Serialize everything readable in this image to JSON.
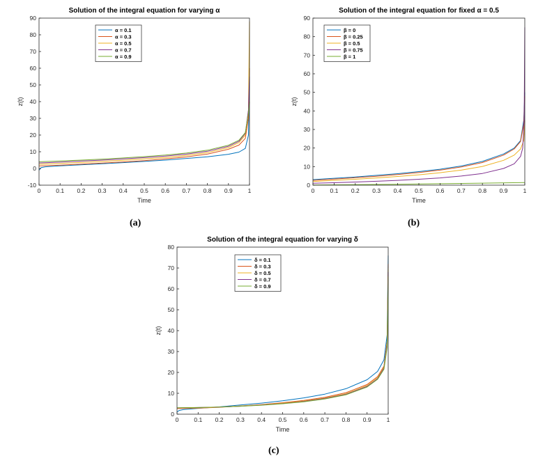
{
  "panel_labels": [
    "(a)",
    "(b)",
    "(c)"
  ],
  "chart_data": [
    {
      "type": "line",
      "title": "Solution of the integral equation for varying α",
      "xlabel": "Time",
      "ylabel": "z(t)",
      "xlim": [
        0,
        1
      ],
      "ylim": [
        -10,
        90
      ],
      "xticks": [
        "0",
        "0.1",
        "0.2",
        "0.3",
        "0.4",
        "0.5",
        "0.6",
        "0.7",
        "0.8",
        "0.9",
        "1"
      ],
      "yticks": [
        "-10",
        "0",
        "10",
        "20",
        "30",
        "40",
        "50",
        "60",
        "70",
        "80",
        "90"
      ],
      "legend_position": "top-left",
      "legend_symbol": "α",
      "legend_labels": [
        "α = 0.1",
        "α = 0.3",
        "α = 0.5",
        "α = 0.7",
        "α = 0.9"
      ],
      "series": [
        {
          "name": "α = 0.1",
          "color": "#0072BD",
          "x": [
            0.0,
            0.01,
            0.03,
            0.1,
            0.2,
            0.3,
            0.4,
            0.5,
            0.6,
            0.7,
            0.8,
            0.9,
            0.95,
            0.98,
            0.995,
            1.0
          ],
          "y": [
            -1,
            0.5,
            1,
            1.6,
            2.2,
            2.8,
            3.5,
            4.2,
            5.0,
            6.0,
            7.0,
            8.5,
            9.8,
            12,
            20,
            55
          ]
        },
        {
          "name": "α = 0.3",
          "color": "#D95319",
          "x": [
            0.0,
            0.1,
            0.2,
            0.3,
            0.4,
            0.5,
            0.6,
            0.7,
            0.8,
            0.9,
            0.95,
            0.98,
            0.995,
            1.0
          ],
          "y": [
            1.5,
            2.0,
            2.6,
            3.2,
            3.9,
            4.7,
            5.7,
            6.9,
            8.6,
            11.5,
            14,
            18,
            30,
            60
          ]
        },
        {
          "name": "α = 0.5",
          "color": "#EDB120",
          "x": [
            0.0,
            0.1,
            0.2,
            0.3,
            0.4,
            0.5,
            0.6,
            0.7,
            0.8,
            0.9,
            0.95,
            0.98,
            0.995,
            1.0
          ],
          "y": [
            2.5,
            3.0,
            3.6,
            4.2,
            4.9,
            5.7,
            6.6,
            7.8,
            9.5,
            12.5,
            15.5,
            20,
            35,
            88
          ]
        },
        {
          "name": "α = 0.7",
          "color": "#7E2F8E",
          "x": [
            0.0,
            0.1,
            0.2,
            0.3,
            0.4,
            0.5,
            0.6,
            0.7,
            0.8,
            0.9,
            0.95,
            0.98,
            0.995,
            1.0
          ],
          "y": [
            3.3,
            3.8,
            4.4,
            5.0,
            5.7,
            6.5,
            7.4,
            8.6,
            10.3,
            13.3,
            16.3,
            21,
            35,
            55
          ]
        },
        {
          "name": "α = 0.9",
          "color": "#77AC30",
          "x": [
            0.0,
            0.1,
            0.2,
            0.3,
            0.4,
            0.5,
            0.6,
            0.7,
            0.8,
            0.9,
            0.95,
            0.98,
            0.995,
            1.0
          ],
          "y": [
            4.0,
            4.5,
            5.0,
            5.6,
            6.3,
            7.1,
            8.0,
            9.2,
            10.9,
            13.9,
            16.9,
            21.5,
            33,
            40
          ]
        }
      ]
    },
    {
      "type": "line",
      "title": "Solution of the integral equation for fixed α = 0.5",
      "xlabel": "Time",
      "ylabel": "z(t)",
      "xlim": [
        0,
        1
      ],
      "ylim": [
        0,
        90
      ],
      "xticks": [
        "0",
        "0.1",
        "0.2",
        "0.3",
        "0.4",
        "0.5",
        "0.6",
        "0.7",
        "0.8",
        "0.9",
        "1"
      ],
      "yticks": [
        "0",
        "10",
        "20",
        "30",
        "40",
        "50",
        "60",
        "70",
        "80",
        "90"
      ],
      "legend_position": "top-left",
      "legend_symbol": "β",
      "legend_labels": [
        "β = 0",
        "β = 0.25",
        "β = 0.5",
        "β = 0.75",
        "β = 1"
      ],
      "series": [
        {
          "name": "β = 0",
          "color": "#0072BD",
          "x": [
            0.0,
            0.1,
            0.2,
            0.3,
            0.4,
            0.5,
            0.6,
            0.7,
            0.8,
            0.9,
            0.95,
            0.98,
            0.995,
            1.0
          ],
          "y": [
            3.0,
            3.7,
            4.4,
            5.3,
            6.2,
            7.3,
            8.6,
            10.3,
            12.8,
            16.8,
            20,
            24,
            35,
            50
          ]
        },
        {
          "name": "β = 0.25",
          "color": "#D95319",
          "x": [
            0.0,
            0.1,
            0.2,
            0.3,
            0.4,
            0.5,
            0.6,
            0.7,
            0.8,
            0.9,
            0.95,
            0.98,
            0.995,
            1.0
          ],
          "y": [
            2.6,
            3.3,
            4.0,
            4.8,
            5.7,
            6.8,
            8.1,
            9.8,
            12.2,
            16.2,
            19.5,
            23.5,
            33,
            48
          ]
        },
        {
          "name": "β = 0.5",
          "color": "#EDB120",
          "x": [
            0.0,
            0.1,
            0.2,
            0.3,
            0.4,
            0.5,
            0.6,
            0.7,
            0.8,
            0.9,
            0.95,
            0.98,
            0.995,
            1.0
          ],
          "y": [
            2.0,
            2.6,
            3.2,
            3.9,
            4.7,
            5.6,
            6.7,
            8.1,
            10.1,
            13.4,
            16.2,
            19.5,
            24,
            35
          ]
        },
        {
          "name": "β = 0.75",
          "color": "#7E2F8E",
          "x": [
            0.0,
            0.1,
            0.2,
            0.3,
            0.4,
            0.5,
            0.6,
            0.7,
            0.8,
            0.9,
            0.95,
            0.98,
            0.99,
            0.997,
            1.0
          ],
          "y": [
            1.0,
            1.3,
            1.7,
            2.1,
            2.6,
            3.2,
            3.9,
            4.9,
            6.3,
            9.0,
            11.5,
            15.5,
            20,
            35,
            85
          ]
        },
        {
          "name": "β = 1",
          "color": "#77AC30",
          "x": [
            0.0,
            0.2,
            0.4,
            0.6,
            0.8,
            1.0
          ],
          "y": [
            0.1,
            0.3,
            0.5,
            0.8,
            1.1,
            1.4
          ]
        }
      ]
    },
    {
      "type": "line",
      "title": "Solution of the integral equation for varying δ",
      "xlabel": "Time",
      "ylabel": "z(t)",
      "xlim": [
        0,
        1
      ],
      "ylim": [
        0,
        80
      ],
      "xticks": [
        "0",
        "0.1",
        "0.2",
        "0.3",
        "0.4",
        "0.5",
        "0.6",
        "0.7",
        "0.8",
        "0.9",
        "1"
      ],
      "yticks": [
        "0",
        "10",
        "20",
        "30",
        "40",
        "50",
        "60",
        "70",
        "80"
      ],
      "legend_position": "top-left",
      "legend_symbol": "δ",
      "legend_labels": [
        "δ = 0.1",
        "δ = 0.3",
        "δ = 0.5",
        "δ = 0.7",
        "δ = 0.9"
      ],
      "series": [
        {
          "name": "δ = 0.1",
          "color": "#0072BD",
          "x": [
            0.0,
            0.01,
            0.03,
            0.1,
            0.2,
            0.3,
            0.4,
            0.5,
            0.6,
            0.7,
            0.8,
            0.9,
            0.95,
            0.98,
            0.995,
            1.0
          ],
          "y": [
            1.0,
            1.8,
            2.2,
            2.8,
            3.5,
            4.4,
            5.3,
            6.4,
            7.8,
            9.6,
            12.2,
            16.5,
            20.5,
            26,
            38,
            76
          ]
        },
        {
          "name": "δ = 0.3",
          "color": "#D95319",
          "x": [
            0.0,
            0.1,
            0.2,
            0.3,
            0.4,
            0.5,
            0.6,
            0.7,
            0.8,
            0.9,
            0.95,
            0.98,
            0.995,
            1.0
          ],
          "y": [
            2.7,
            2.9,
            3.3,
            3.9,
            4.6,
            5.5,
            6.6,
            8.1,
            10.3,
            14.2,
            18,
            23,
            35,
            72
          ]
        },
        {
          "name": "δ = 0.5",
          "color": "#EDB120",
          "x": [
            0.0,
            0.1,
            0.2,
            0.3,
            0.4,
            0.5,
            0.6,
            0.7,
            0.8,
            0.9,
            0.95,
            0.98,
            0.995,
            1.0
          ],
          "y": [
            2.9,
            3.1,
            3.4,
            3.9,
            4.5,
            5.3,
            6.3,
            7.7,
            9.8,
            13.7,
            17.5,
            22.5,
            34,
            70
          ]
        },
        {
          "name": "δ = 0.7",
          "color": "#7E2F8E",
          "x": [
            0.0,
            0.1,
            0.2,
            0.3,
            0.4,
            0.5,
            0.6,
            0.7,
            0.8,
            0.9,
            0.95,
            0.98,
            0.995,
            1.0
          ],
          "y": [
            3.0,
            3.2,
            3.4,
            3.8,
            4.4,
            5.1,
            6.1,
            7.5,
            9.5,
            13.3,
            17,
            22,
            33,
            68
          ]
        },
        {
          "name": "δ = 0.9",
          "color": "#77AC30",
          "x": [
            0.0,
            0.1,
            0.2,
            0.3,
            0.4,
            0.5,
            0.6,
            0.7,
            0.8,
            0.9,
            0.95,
            0.98,
            0.995,
            1.0
          ],
          "y": [
            3.1,
            3.2,
            3.4,
            3.8,
            4.3,
            5.0,
            5.9,
            7.3,
            9.3,
            13.0,
            16.7,
            21.5,
            32,
            66
          ]
        }
      ]
    }
  ]
}
